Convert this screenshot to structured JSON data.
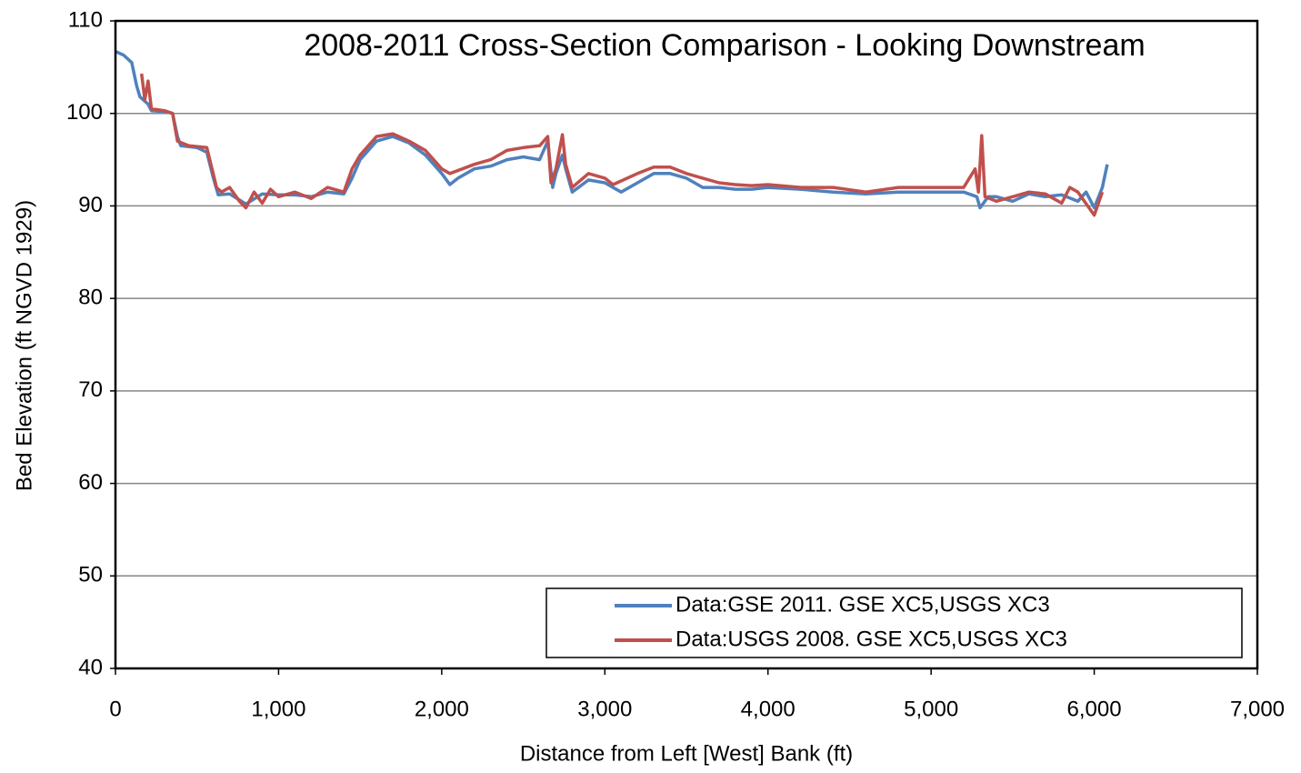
{
  "chart_data": {
    "type": "line",
    "title": "2008-2011 Cross-Section Comparison - Looking Downstream",
    "x_label": "Distance from Left [West] Bank (ft)",
    "y_label": "Bed Elevation (ft NGVD 1929)",
    "xlim": [
      0,
      7000
    ],
    "xticks": [
      0,
      {
        "value": 1000,
        "label": "1,000"
      },
      {
        "value": 2000,
        "label": "2,000"
      },
      {
        "value": 3000,
        "label": "3,000"
      },
      {
        "value": 4000,
        "label": "4,000"
      },
      {
        "value": 5000,
        "label": "5,000"
      },
      {
        "value": 6000,
        "label": "6,000"
      },
      {
        "value": 7000,
        "label": "7,000"
      }
    ],
    "ylim": [
      40,
      110
    ],
    "yticks": [
      40,
      50,
      60,
      70,
      80,
      90,
      100,
      110
    ],
    "grid": true,
    "legend": "lower right",
    "series": [
      {
        "name": "Data:GSE 2011. GSE XC5,USGS XC3",
        "color": "#4f81bd",
        "x": [
          0,
          50,
          100,
          130,
          150,
          200,
          220,
          300,
          350,
          380,
          400,
          500,
          560,
          600,
          630,
          700,
          800,
          900,
          1000,
          1100,
          1200,
          1300,
          1400,
          1450,
          1500,
          1600,
          1700,
          1800,
          1900,
          2000,
          2050,
          2100,
          2200,
          2300,
          2400,
          2500,
          2600,
          2650,
          2680,
          2700,
          2740,
          2760,
          2800,
          2900,
          3000,
          3100,
          3200,
          3300,
          3400,
          3500,
          3600,
          3700,
          3800,
          3900,
          4000,
          4200,
          4400,
          4600,
          4800,
          5000,
          5200,
          5280,
          5300,
          5350,
          5400,
          5500,
          5600,
          5700,
          5800,
          5900,
          5950,
          6000,
          6050,
          6080
        ],
        "values": [
          106.7,
          106.3,
          105.5,
          103,
          101.8,
          101,
          100.3,
          100.2,
          100,
          97.5,
          96.5,
          96.3,
          95.8,
          93,
          91.2,
          91.3,
          90.2,
          91.3,
          91.2,
          91.2,
          91,
          91.5,
          91.3,
          93,
          95,
          97,
          97.5,
          96.8,
          95.5,
          93.5,
          92.3,
          93,
          94,
          94.3,
          95,
          95.3,
          95,
          97,
          92,
          93.5,
          95.5,
          94,
          91.5,
          92.8,
          92.5,
          91.5,
          92.5,
          93.5,
          93.5,
          93,
          92,
          92,
          91.8,
          91.8,
          92,
          91.8,
          91.5,
          91.3,
          91.5,
          91.5,
          91.5,
          91,
          89.8,
          91,
          91,
          90.5,
          91.3,
          91,
          91.2,
          90.5,
          91.5,
          89.8,
          92,
          94.5
        ]
      },
      {
        "name": "Data:USGS 2008. GSE XC5,USGS XC3",
        "color": "#c0504d",
        "x": [
          160,
          180,
          200,
          220,
          300,
          350,
          380,
          450,
          560,
          620,
          650,
          700,
          760,
          800,
          850,
          900,
          950,
          1000,
          1100,
          1200,
          1300,
          1400,
          1450,
          1500,
          1600,
          1700,
          1800,
          1900,
          2000,
          2050,
          2200,
          2300,
          2400,
          2500,
          2600,
          2650,
          2670,
          2700,
          2740,
          2760,
          2800,
          2900,
          3000,
          3050,
          3200,
          3300,
          3400,
          3500,
          3600,
          3700,
          3800,
          3900,
          4000,
          4200,
          4400,
          4600,
          4800,
          5000,
          5200,
          5270,
          5290,
          5310,
          5330,
          5400,
          5500,
          5600,
          5700,
          5800,
          5850,
          5900,
          6000,
          6050
        ],
        "values": [
          104.3,
          101.5,
          103.5,
          100.5,
          100.3,
          100,
          97,
          96.5,
          96.3,
          92,
          91.5,
          92,
          90.5,
          89.8,
          91.5,
          90.3,
          91.8,
          91,
          91.5,
          90.8,
          92,
          91.5,
          94,
          95.5,
          97.5,
          97.8,
          97,
          96,
          94,
          93.5,
          94.5,
          95,
          96,
          96.3,
          96.5,
          97.5,
          92.5,
          94,
          97.7,
          94.5,
          92,
          93.5,
          93,
          92.3,
          93.5,
          94.2,
          94.2,
          93.5,
          93,
          92.5,
          92.3,
          92.2,
          92.3,
          92,
          92,
          91.5,
          92,
          92,
          92,
          94,
          91.5,
          97.6,
          91,
          90.5,
          91,
          91.5,
          91.3,
          90.3,
          92,
          91.5,
          89,
          91.5
        ]
      }
    ]
  }
}
